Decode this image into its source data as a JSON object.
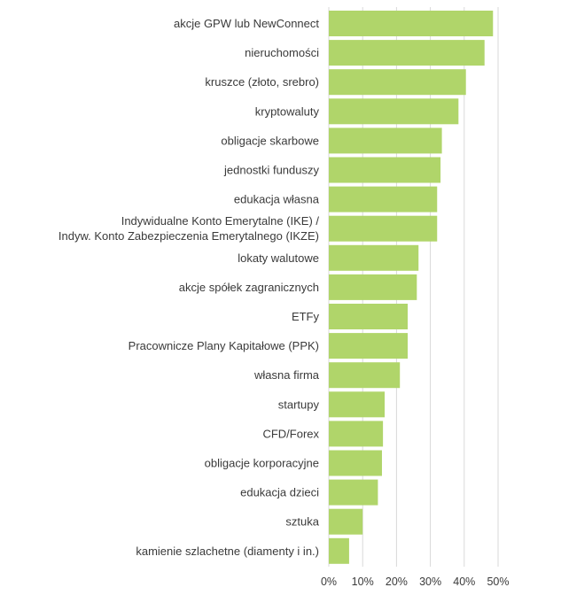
{
  "chart_data": {
    "type": "bar",
    "orientation": "horizontal",
    "title": "",
    "xlabel": "",
    "ylabel": "",
    "xlim": [
      0,
      50
    ],
    "x_ticks": [
      "0%",
      "10%",
      "20%",
      "30%",
      "40%",
      "50%"
    ],
    "grid": true,
    "legend": "none",
    "bar_color": "#b0d56a",
    "categories": [
      [
        "akcje GPW lub NewConnect"
      ],
      [
        "nieruchomości"
      ],
      [
        "kruszce (złoto, srebro)"
      ],
      [
        "kryptowaluty"
      ],
      [
        "obligacje skarbowe"
      ],
      [
        "jednostki funduszy"
      ],
      [
        "edukacja własna"
      ],
      [
        "Indywidualne Konto Emerytalne (IKE) /",
        "Indyw. Konto Zabezpieczenia Emerytalnego (IKZE)"
      ],
      [
        "lokaty walutowe"
      ],
      [
        "akcje spółek zagranicznych"
      ],
      [
        "ETFy"
      ],
      [
        "Pracownicze Plany Kapitałowe (PPK)"
      ],
      [
        "własna firma"
      ],
      [
        "startupy"
      ],
      [
        "CFD/Forex"
      ],
      [
        "obligacje korporacyjne"
      ],
      [
        "edukacja dzieci"
      ],
      [
        "sztuka"
      ],
      [
        "kamienie szlachetne (diamenty i in.)"
      ]
    ],
    "values": [
      48.5,
      46.0,
      40.5,
      38.3,
      33.4,
      33.0,
      32.0,
      32.0,
      26.5,
      26.0,
      23.3,
      23.3,
      21.0,
      16.5,
      16.0,
      15.7,
      14.5,
      10.0,
      6.0
    ]
  }
}
